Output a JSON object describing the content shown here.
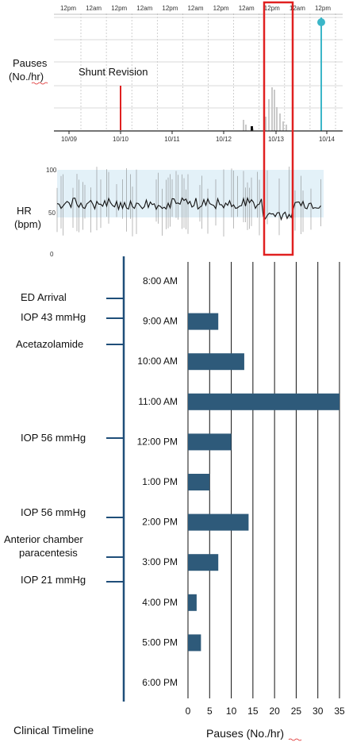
{
  "pauses_panel": {
    "time_labels": [
      "12pm",
      "12am",
      "12pm",
      "12am",
      "12pm",
      "12am",
      "12pm",
      "12am",
      "12pm",
      "12am",
      "12pm"
    ],
    "date_labels": [
      "10/09",
      "10/10",
      "10/11",
      "10/12",
      "10/13",
      "10/14"
    ],
    "ylabel_line1": "Pauses",
    "ylabel_line2": "(No./hr)",
    "annotation": "Shunt Revision"
  },
  "hr_panel": {
    "ylabel_line1": "HR",
    "ylabel_line2": "(bpm)",
    "yticks": [
      "100",
      "50",
      "0"
    ]
  },
  "timeline": {
    "title": "Clinical Timeline",
    "events": [
      {
        "label": "ED Arrival",
        "time": "8:30 AM"
      },
      {
        "label": "IOP 43 mmHg",
        "time": "9:00 AM"
      },
      {
        "label": "Acetazolamide",
        "time": "9:30 AM"
      },
      {
        "label": "IOP 56 mmHg",
        "time": "12:00 PM"
      },
      {
        "label": "IOP 56 mmHg",
        "time": "2:00 PM"
      },
      {
        "label": "Anterior chamber paracentesis",
        "label_line1": "Anterior chamber",
        "label_line2": "paracentesis",
        "time": "2:45 PM"
      },
      {
        "label": "IOP 21 mmHg",
        "time": "3:30 PM"
      }
    ]
  },
  "chart_data": {
    "type": "bar",
    "orientation": "horizontal",
    "categories": [
      "8:00 AM",
      "9:00 AM",
      "10:00 AM",
      "11:00 AM",
      "12:00 PM",
      "1:00 PM",
      "2:00 PM",
      "3:00 PM",
      "4:00 PM",
      "5:00 PM",
      "6:00 PM"
    ],
    "values": [
      0,
      7,
      13,
      35,
      10,
      5,
      14,
      7,
      2,
      3,
      0
    ],
    "xlabel": "Pauses (No./hr)",
    "xlim": [
      0,
      35
    ],
    "xticks": [
      0,
      5,
      10,
      15,
      20,
      25,
      30,
      35
    ],
    "bar_color": "#2e5a7a",
    "grid": true
  },
  "colors": {
    "highlight_box": "#e02020",
    "shunt_line": "#e02020",
    "marker_line": "#3bb6c8",
    "timeline_axis": "#1f4e79",
    "hr_band": "#e3f1f8"
  }
}
